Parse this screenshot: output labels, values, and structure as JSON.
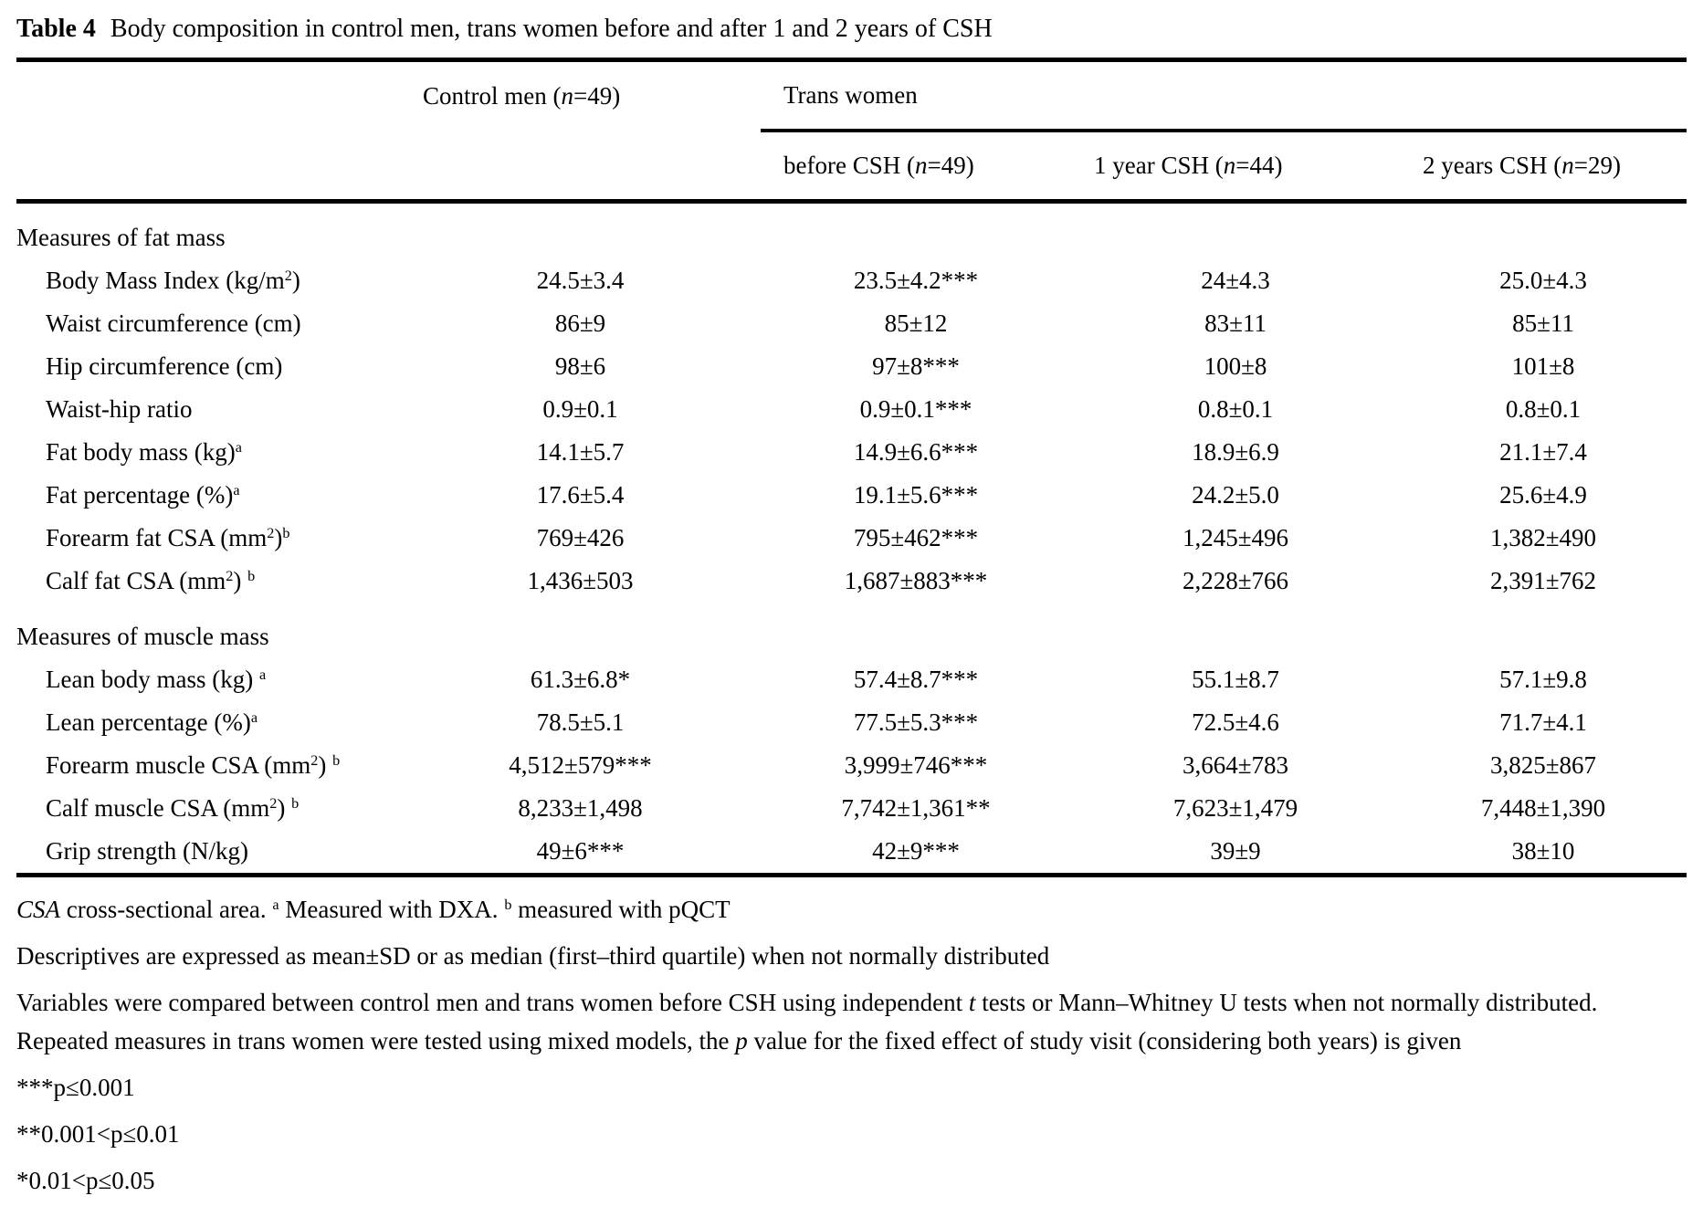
{
  "title": {
    "label": "Table 4",
    "text": "Body composition in control men, trans women before and after 1 and 2 years of CSH"
  },
  "table": {
    "group_header": {
      "control": [
        {
          "t": "Control men ("
        },
        {
          "i": "n"
        },
        {
          "t": "=49)"
        }
      ],
      "trans": [
        {
          "t": "Trans women"
        }
      ]
    },
    "columns": [
      [
        {
          "t": "before CSH ("
        },
        {
          "i": "n"
        },
        {
          "t": "=49)"
        }
      ],
      [
        {
          "t": "1 year CSH ("
        },
        {
          "i": "n"
        },
        {
          "t": "=44)"
        }
      ],
      [
        {
          "t": "2 years CSH ("
        },
        {
          "i": "n"
        },
        {
          "t": "=29)"
        }
      ]
    ],
    "sections": [
      {
        "header": "Measures of fat mass",
        "rows": [
          {
            "label": [
              {
                "t": "Body Mass Index (kg/m"
              },
              {
                "sup": "2"
              },
              {
                "t": ")"
              }
            ],
            "values": [
              "24.5±3.4",
              "23.5±4.2***",
              "24±4.3",
              "25.0±4.3"
            ]
          },
          {
            "label": [
              {
                "t": "Waist circumference (cm)"
              }
            ],
            "values": [
              "86±9",
              "85±12",
              "83±11",
              "85±11"
            ]
          },
          {
            "label": [
              {
                "t": "Hip circumference (cm)"
              }
            ],
            "values": [
              "98±6",
              "97±8***",
              "100±8",
              "101±8"
            ]
          },
          {
            "label": [
              {
                "t": "Waist-hip ratio"
              }
            ],
            "values": [
              "0.9±0.1",
              "0.9±0.1***",
              "0.8±0.1",
              "0.8±0.1"
            ]
          },
          {
            "label": [
              {
                "t": "Fat body mass (kg)"
              },
              {
                "sup": "a"
              }
            ],
            "values": [
              "14.1±5.7",
              "14.9±6.6***",
              "18.9±6.9",
              "21.1±7.4"
            ]
          },
          {
            "label": [
              {
                "t": "Fat percentage (%)"
              },
              {
                "sup": "a"
              }
            ],
            "values": [
              "17.6±5.4",
              "19.1±5.6***",
              "24.2±5.0",
              "25.6±4.9"
            ]
          },
          {
            "label": [
              {
                "t": "Forearm fat CSA (mm"
              },
              {
                "sup": "2"
              },
              {
                "t": ")"
              },
              {
                "sup": "b"
              }
            ],
            "values": [
              "769±426",
              "795±462***",
              "1,245±496",
              "1,382±490"
            ]
          },
          {
            "label": [
              {
                "t": "Calf fat CSA (mm"
              },
              {
                "sup": "2"
              },
              {
                "t": ") "
              },
              {
                "sup": "b"
              }
            ],
            "values": [
              "1,436±503",
              "1,687±883***",
              "2,228±766",
              "2,391±762"
            ]
          }
        ]
      },
      {
        "header": "Measures of muscle mass",
        "rows": [
          {
            "label": [
              {
                "t": "Lean body mass (kg) "
              },
              {
                "sup": "a"
              }
            ],
            "values": [
              "61.3±6.8*",
              "57.4±8.7***",
              "55.1±8.7",
              "57.1±9.8"
            ]
          },
          {
            "label": [
              {
                "t": "Lean percentage (%)"
              },
              {
                "sup": "a"
              }
            ],
            "values": [
              "78.5±5.1",
              "77.5±5.3***",
              "72.5±4.6",
              "71.7±4.1"
            ]
          },
          {
            "label": [
              {
                "t": "Forearm muscle CSA (mm"
              },
              {
                "sup": "2"
              },
              {
                "t": ") "
              },
              {
                "sup": "b"
              }
            ],
            "values": [
              "4,512±579***",
              "3,999±746***",
              "3,664±783",
              "3,825±867"
            ]
          },
          {
            "label": [
              {
                "t": "Calf muscle CSA (mm"
              },
              {
                "sup": "2"
              },
              {
                "t": ") "
              },
              {
                "sup": "b"
              }
            ],
            "values": [
              "8,233±1,498",
              "7,742±1,361**",
              "7,623±1,479",
              "7,448±1,390"
            ]
          },
          {
            "label": [
              {
                "t": "Grip strength (N/kg)"
              }
            ],
            "values": [
              "49±6***",
              "42±9***",
              "39±9",
              "38±10"
            ]
          }
        ]
      }
    ]
  },
  "footnotes": [
    [
      {
        "i": "CSA"
      },
      {
        "t": " cross-sectional area. "
      },
      {
        "sup": "a"
      },
      {
        "t": " Measured with DXA. "
      },
      {
        "sup": "b"
      },
      {
        "t": " measured with pQCT"
      }
    ],
    [
      {
        "t": "Descriptives are expressed as mean±SD or as median (first–third quartile) when not normally distributed"
      }
    ],
    [
      {
        "t": "Variables were compared between control men and trans women before CSH using independent "
      },
      {
        "i": "t"
      },
      {
        "t": " tests or Mann–Whitney U tests when not normally distributed. Repeated measures in trans women were tested using mixed models, the "
      },
      {
        "i": "p"
      },
      {
        "t": " value for the fixed effect of study visit (considering both years) is given"
      }
    ],
    [
      {
        "t": "***p≤0.001"
      }
    ],
    [
      {
        "t": "**0.001<p≤0.01"
      }
    ],
    [
      {
        "t": "*0.01<p≤0.05"
      }
    ]
  ]
}
